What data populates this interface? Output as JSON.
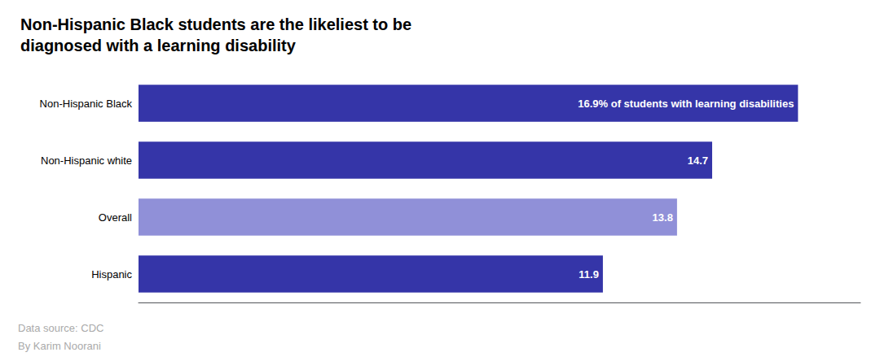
{
  "chart_data": {
    "type": "bar",
    "orientation": "horizontal",
    "title": "Non-Hispanic Black students are the likeliest to be\ndiagnosed with a learning disability",
    "categories": [
      "Non-Hispanic Black",
      "Non-Hispanic white",
      "Overall",
      "Hispanic"
    ],
    "values": [
      16.9,
      14.7,
      13.8,
      11.9
    ],
    "value_labels": [
      "16.9% of students with learning disabilities",
      "14.7",
      "13.8",
      "11.9"
    ],
    "colors": [
      "#3535a8",
      "#3535a8",
      "#9090d8",
      "#3535a8"
    ],
    "data_labels": true,
    "xlim": [
      0,
      18.5
    ],
    "tick_labels": "y",
    "grid": false,
    "annotations": [
      "Data source: CDC",
      "By Karim Noorani"
    ]
  }
}
